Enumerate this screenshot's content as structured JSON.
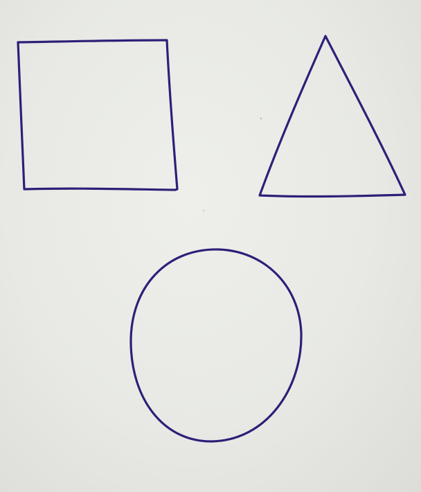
{
  "photo": {
    "subject": "",
    "ink_color": "#2e1f78",
    "paper_color": "#e9eae6",
    "shapes": [
      {
        "kind": "square"
      },
      {
        "kind": "triangle"
      },
      {
        "kind": "circle"
      }
    ]
  }
}
